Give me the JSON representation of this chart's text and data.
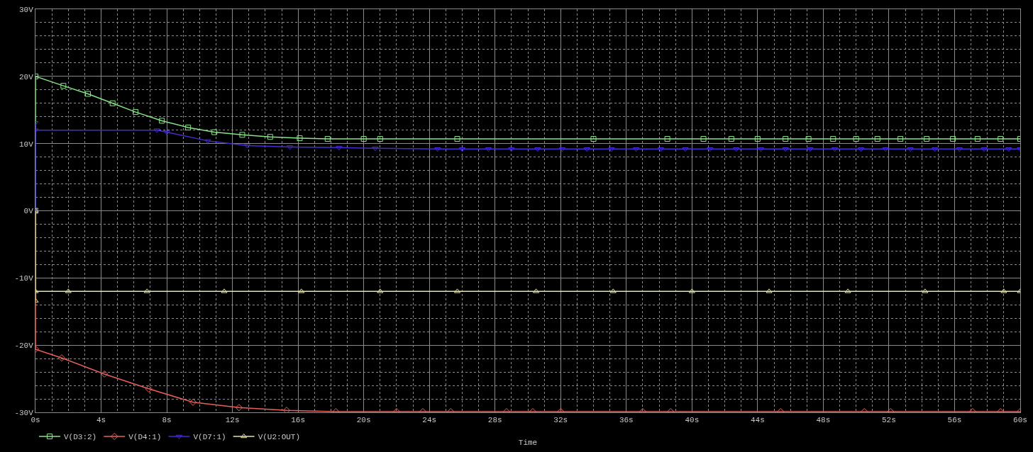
{
  "chart_data": {
    "type": "line",
    "xlabel": "Time",
    "xlim": [
      0,
      60
    ],
    "ylim": [
      -30,
      30
    ],
    "xticks": [
      {
        "value": 0,
        "label": "0s"
      },
      {
        "value": 1,
        "label": null
      },
      {
        "value": 2,
        "label": null
      },
      {
        "value": 3,
        "label": null
      },
      {
        "value": 4,
        "label": "4s"
      },
      {
        "value": 5,
        "label": null
      },
      {
        "value": 6,
        "label": null
      },
      {
        "value": 7,
        "label": null
      },
      {
        "value": 8,
        "label": "8s"
      },
      {
        "value": 9,
        "label": null
      },
      {
        "value": 10,
        "label": null
      },
      {
        "value": 11,
        "label": null
      },
      {
        "value": 12,
        "label": "12s"
      },
      {
        "value": 13,
        "label": null
      },
      {
        "value": 14,
        "label": null
      },
      {
        "value": 15,
        "label": null
      },
      {
        "value": 16,
        "label": "16s"
      },
      {
        "value": 17,
        "label": null
      },
      {
        "value": 18,
        "label": null
      },
      {
        "value": 19,
        "label": null
      },
      {
        "value": 20,
        "label": "20s"
      },
      {
        "value": 21,
        "label": null
      },
      {
        "value": 22,
        "label": null
      },
      {
        "value": 23,
        "label": null
      },
      {
        "value": 24,
        "label": "24s"
      },
      {
        "value": 25,
        "label": null
      },
      {
        "value": 26,
        "label": null
      },
      {
        "value": 27,
        "label": null
      },
      {
        "value": 28,
        "label": "28s"
      },
      {
        "value": 29,
        "label": null
      },
      {
        "value": 30,
        "label": null
      },
      {
        "value": 31,
        "label": null
      },
      {
        "value": 32,
        "label": "32s"
      },
      {
        "value": 33,
        "label": null
      },
      {
        "value": 34,
        "label": null
      },
      {
        "value": 35,
        "label": null
      },
      {
        "value": 36,
        "label": "36s"
      },
      {
        "value": 37,
        "label": null
      },
      {
        "value": 38,
        "label": null
      },
      {
        "value": 39,
        "label": null
      },
      {
        "value": 40,
        "label": "40s"
      },
      {
        "value": 41,
        "label": null
      },
      {
        "value": 42,
        "label": null
      },
      {
        "value": 43,
        "label": null
      },
      {
        "value": 44,
        "label": "44s"
      },
      {
        "value": 45,
        "label": null
      },
      {
        "value": 46,
        "label": null
      },
      {
        "value": 47,
        "label": null
      },
      {
        "value": 48,
        "label": "48s"
      },
      {
        "value": 49,
        "label": null
      },
      {
        "value": 50,
        "label": null
      },
      {
        "value": 51,
        "label": null
      },
      {
        "value": 52,
        "label": "52s"
      },
      {
        "value": 53,
        "label": null
      },
      {
        "value": 54,
        "label": null
      },
      {
        "value": 55,
        "label": null
      },
      {
        "value": 56,
        "label": "56s"
      },
      {
        "value": 57,
        "label": null
      },
      {
        "value": 58,
        "label": null
      },
      {
        "value": 59,
        "label": null
      },
      {
        "value": 60,
        "label": "60s"
      }
    ],
    "yticks": [
      {
        "value": -30,
        "label": "-30V"
      },
      {
        "value": -28,
        "label": null
      },
      {
        "value": -26,
        "label": null
      },
      {
        "value": -24,
        "label": null
      },
      {
        "value": -22,
        "label": null
      },
      {
        "value": -20,
        "label": "-20V"
      },
      {
        "value": -18,
        "label": null
      },
      {
        "value": -16,
        "label": null
      },
      {
        "value": -14,
        "label": null
      },
      {
        "value": -12,
        "label": null
      },
      {
        "value": -10,
        "label": "-10V"
      },
      {
        "value": -8,
        "label": null
      },
      {
        "value": -6,
        "label": null
      },
      {
        "value": -4,
        "label": null
      },
      {
        "value": -2,
        "label": null
      },
      {
        "value": 0,
        "label": "0V"
      },
      {
        "value": 2,
        "label": null
      },
      {
        "value": 4,
        "label": null
      },
      {
        "value": 6,
        "label": null
      },
      {
        "value": 8,
        "label": null
      },
      {
        "value": 10,
        "label": "10V"
      },
      {
        "value": 12,
        "label": null
      },
      {
        "value": 14,
        "label": null
      },
      {
        "value": 16,
        "label": null
      },
      {
        "value": 18,
        "label": null
      },
      {
        "value": 20,
        "label": "20V"
      },
      {
        "value": 22,
        "label": null
      },
      {
        "value": 24,
        "label": null
      },
      {
        "value": 26,
        "label": null
      },
      {
        "value": 28,
        "label": null
      },
      {
        "value": 30,
        "label": "30V"
      }
    ],
    "grid": true,
    "legend": "bottom left",
    "line_style": "solid",
    "series": [
      {
        "name": "V(D3:2)",
        "color": "#86e386",
        "marker": "square",
        "x": [
          0,
          0,
          1.7,
          3.2,
          4.7,
          6.1,
          7.7,
          9.3,
          10.9,
          12.6,
          14.3,
          16.1,
          17.8,
          20.0,
          21.0,
          25.7,
          34.0,
          38.5,
          40.7,
          42.4,
          44.0,
          45.7,
          47.1,
          48.6,
          50.0,
          51.3,
          52.7,
          54.3,
          55.9,
          57.4,
          58.8,
          60
        ],
        "values": [
          0,
          20.0,
          18.6,
          17.4,
          16.0,
          14.7,
          13.4,
          12.4,
          11.7,
          11.3,
          11.0,
          10.8,
          10.7,
          10.7,
          10.7,
          10.7,
          10.7,
          10.7,
          10.7,
          10.7,
          10.7,
          10.7,
          10.7,
          10.7,
          10.7,
          10.7,
          10.7,
          10.7,
          10.7,
          10.7,
          10.7,
          10.7
        ]
      },
      {
        "name": "V(D4:1)",
        "color": "#e8605a",
        "marker": "diamond",
        "x": [
          0,
          0,
          1.6,
          4.2,
          6.9,
          9.6,
          12.4,
          15.3,
          18.3,
          22.0,
          23.6,
          25.3,
          28.7,
          30.3,
          32.0,
          37.0,
          38.7,
          45.4,
          50.5,
          52.1,
          57.1,
          58.8,
          60
        ],
        "values": [
          0,
          -20.6,
          -21.9,
          -24.3,
          -26.5,
          -28.5,
          -29.3,
          -29.7,
          -29.9,
          -29.9,
          -29.9,
          -29.9,
          -29.9,
          -29.9,
          -29.9,
          -29.9,
          -29.9,
          -29.9,
          -29.9,
          -29.9,
          -29.9,
          -29.9,
          -29.9
        ]
      },
      {
        "name": "V(D7:1)",
        "color": "#4a2bd2",
        "marker": "triangle-down",
        "x": [
          0,
          0,
          0,
          7.4,
          8.0,
          10.5,
          12.9,
          15.5,
          18.5,
          20.7,
          24.5,
          26.0,
          27.6,
          29.0,
          30.6,
          32.1,
          33.6,
          35.1,
          36.6,
          38.1,
          39.6,
          41.1,
          42.7,
          44.2,
          45.7,
          47.2,
          48.7,
          50.3,
          51.8,
          53.3,
          54.8,
          56.3,
          57.8,
          59.3,
          60
        ],
        "values": [
          0,
          13.1,
          12.0,
          12.0,
          11.7,
          10.4,
          9.7,
          9.5,
          9.4,
          9.3,
          9.2,
          9.2,
          9.2,
          9.2,
          9.2,
          9.2,
          9.2,
          9.2,
          9.2,
          9.2,
          9.2,
          9.2,
          9.2,
          9.2,
          9.2,
          9.2,
          9.2,
          9.2,
          9.2,
          9.2,
          9.2,
          9.2,
          9.2,
          9.2,
          9.2
        ]
      },
      {
        "name": "V(U2:OUT)",
        "color": "#e4e4a6",
        "marker": "triangle",
        "x": [
          0,
          0,
          0,
          2.0,
          6.8,
          11.5,
          16.2,
          21.0,
          25.7,
          30.5,
          35.2,
          40.0,
          44.7,
          49.5,
          54.2,
          59.0,
          60
        ],
        "values": [
          0,
          -13.4,
          -12.0,
          -12.0,
          -12.0,
          -12.0,
          -12.0,
          -12.0,
          -12.0,
          -12.0,
          -12.0,
          -12.0,
          -12.0,
          -12.0,
          -12.0,
          -12.0,
          -12.0
        ]
      }
    ]
  }
}
